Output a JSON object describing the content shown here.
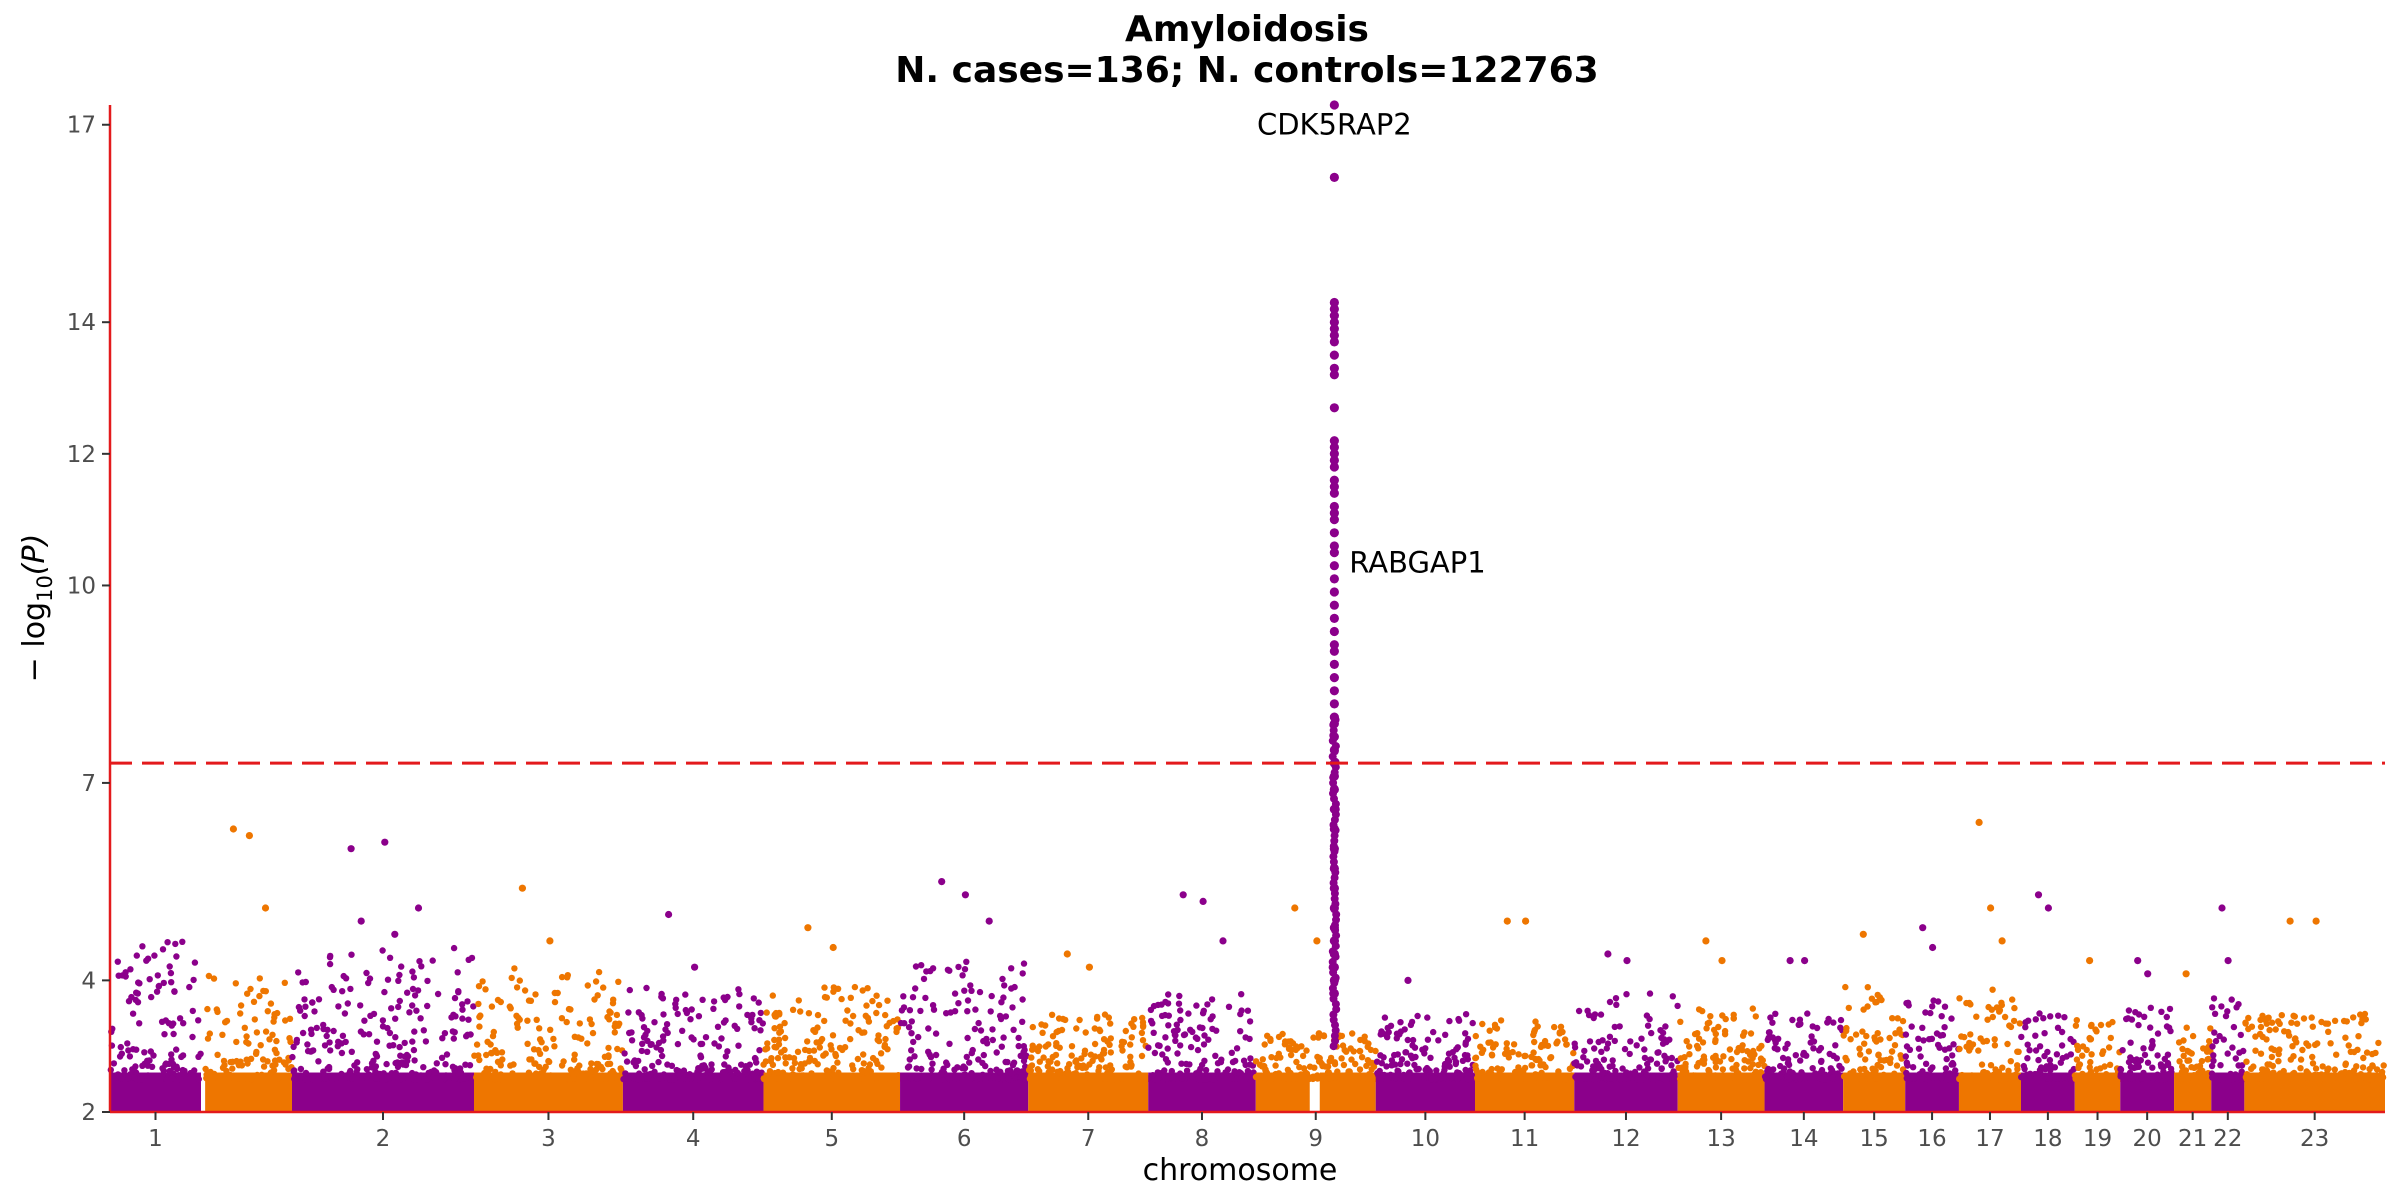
{
  "chart_data": {
    "type": "scatter",
    "subtype": "manhattan",
    "title": "Amyloidosis",
    "subtitle": "N. cases=136; N. controls=122763",
    "xlabel": "chromosome",
    "ylabel_prefix": "− log",
    "ylabel_sub": "10",
    "ylabel_suffix": "(P)",
    "ylim": [
      2,
      17.3
    ],
    "yticks": [
      2,
      4,
      7,
      10,
      12,
      14,
      17
    ],
    "significance_threshold": 7.3,
    "threshold_color": "#e31a1c",
    "axis_color": "#e31a1c",
    "colors": {
      "odd": "#8b008b",
      "even": "#ee7600"
    },
    "grid": false,
    "legend": "none",
    "chromosomes": [
      {
        "label": "1",
        "start": 0.0,
        "end": 1.1,
        "peak": 4.6,
        "gap_from": 1.0
      },
      {
        "label": "",
        "start": 1.15,
        "end": 2.2,
        "peak": 4.1,
        "highs": [
          6.3,
          6.2,
          5.1
        ]
      },
      {
        "label": "2",
        "start": 2.2,
        "end": 4.4,
        "peak": 4.5,
        "highs": [
          6.0,
          6.1,
          5.1,
          4.9,
          4.7
        ]
      },
      {
        "label": "3",
        "start": 4.4,
        "end": 6.2,
        "peak": 4.2,
        "highs": [
          5.4,
          4.6
        ]
      },
      {
        "label": "4",
        "start": 6.2,
        "end": 7.9,
        "peak": 3.9,
        "highs": [
          5.0,
          4.2
        ]
      },
      {
        "label": "5",
        "start": 7.9,
        "end": 9.55,
        "peak": 3.9,
        "highs": [
          4.8,
          4.5
        ]
      },
      {
        "label": "6",
        "start": 9.55,
        "end": 11.1,
        "peak": 4.3,
        "highs": [
          5.5,
          5.3,
          4.9
        ]
      },
      {
        "label": "7",
        "start": 11.1,
        "end": 12.55,
        "peak": 3.5,
        "highs": [
          4.4,
          4.2
        ]
      },
      {
        "label": "8",
        "start": 12.55,
        "end": 13.85,
        "peak": 3.8,
        "highs": [
          5.3,
          5.2,
          4.6
        ]
      },
      {
        "label": "9",
        "start": 13.85,
        "end": 15.3,
        "peak": 3.2,
        "highs": [
          5.1,
          4.6
        ],
        "gap_from": 0.45
      },
      {
        "label": "10",
        "start": 15.3,
        "end": 16.5,
        "peak": 3.5,
        "highs": [
          4.0
        ]
      },
      {
        "label": "11",
        "start": 16.5,
        "end": 17.7,
        "peak": 3.4,
        "highs": [
          4.9,
          4.9
        ]
      },
      {
        "label": "12",
        "start": 17.7,
        "end": 18.95,
        "peak": 3.8,
        "highs": [
          4.4,
          4.3
        ]
      },
      {
        "label": "13",
        "start": 18.95,
        "end": 20.0,
        "peak": 3.6,
        "highs": [
          4.6,
          4.3
        ]
      },
      {
        "label": "14",
        "start": 20.0,
        "end": 20.95,
        "peak": 3.5,
        "highs": [
          4.3,
          4.3
        ]
      },
      {
        "label": "15",
        "start": 20.95,
        "end": 21.7,
        "peak": 3.9,
        "highs": [
          4.7
        ]
      },
      {
        "label": "16",
        "start": 21.7,
        "end": 22.35,
        "peak": 3.7,
        "highs": [
          4.8,
          4.5
        ]
      },
      {
        "label": "17",
        "start": 22.35,
        "end": 23.1,
        "peak": 3.9,
        "highs": [
          6.4,
          5.1,
          4.6
        ]
      },
      {
        "label": "18",
        "start": 23.1,
        "end": 23.75,
        "peak": 3.5,
        "highs": [
          5.3,
          5.1
        ]
      },
      {
        "label": "19",
        "start": 23.75,
        "end": 24.3,
        "peak": 3.4,
        "highs": [
          4.3
        ]
      },
      {
        "label": "20",
        "start": 24.3,
        "end": 24.95,
        "peak": 3.6,
        "highs": [
          4.3,
          4.1
        ]
      },
      {
        "label": "21",
        "start": 24.95,
        "end": 25.4,
        "peak": 3.3,
        "highs": [
          4.1
        ]
      },
      {
        "label": "22",
        "start": 25.4,
        "end": 25.8,
        "peak": 3.9,
        "highs": [
          5.1,
          4.3
        ]
      },
      {
        "label": "23",
        "start": 25.8,
        "end": 27.5,
        "peak": 3.5,
        "highs": [
          4.9,
          4.9
        ]
      }
    ],
    "signal_peak": {
      "chromosome": "9",
      "x": 14.8,
      "values": [
        17.3,
        16.2,
        14.3,
        14.2,
        14.1,
        14.0,
        13.9,
        13.8,
        13.7,
        13.5,
        13.3,
        13.2,
        12.7,
        12.2,
        12.1,
        12.0,
        11.9,
        11.8,
        11.6,
        11.5,
        11.4,
        11.2,
        11.1,
        11.0,
        10.8,
        10.6,
        10.5,
        10.3,
        10.1,
        9.9,
        9.7,
        9.5,
        9.3,
        9.1,
        9.0,
        8.8,
        8.6,
        8.4,
        8.2,
        8.0,
        7.9,
        7.7,
        7.5,
        7.3,
        7.1,
        6.9,
        6.6,
        6.3,
        6.0,
        5.7,
        5.4,
        5.1,
        4.8,
        4.6,
        4.4,
        4.2,
        4.0,
        3.8
      ]
    },
    "annotations": [
      {
        "text": "CDK5RAP2",
        "x": 14.8,
        "y": 17.0,
        "anchor": "middle"
      },
      {
        "text": "RABGAP1",
        "x": 14.98,
        "y": 10.35,
        "anchor": "start"
      }
    ]
  }
}
